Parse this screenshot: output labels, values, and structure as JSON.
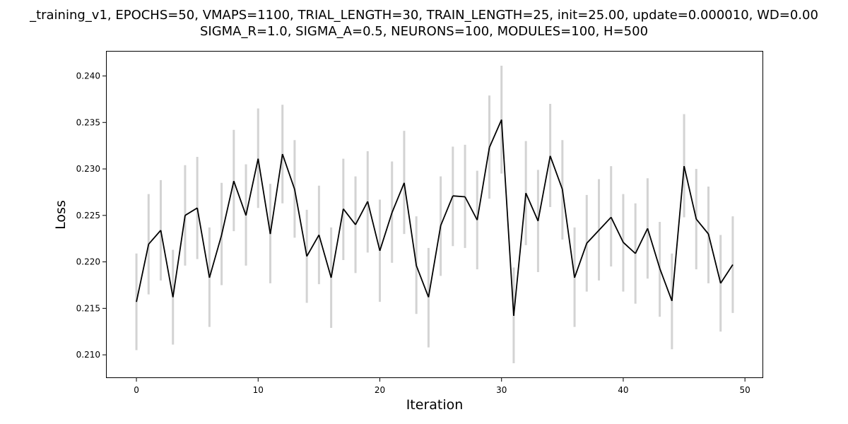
{
  "chart_data": {
    "type": "line",
    "title_line1": "_training_v1, EPOCHS=50, VMAPS=1100, TRIAL_LENGTH=30, TRAIN_LENGTH=25, init=25.00, update=0.000010, WD=0.00",
    "title_line2": "SIGMA_R=1.0, SIGMA_A=0.5, NEURONS=100, MODULES=100, H=500",
    "xlabel": "Iteration",
    "ylabel": "Loss",
    "xlim": [
      -2.5,
      51.5
    ],
    "ylim": [
      0.2075,
      0.2427
    ],
    "xticks": [
      0,
      10,
      20,
      30,
      40,
      50
    ],
    "yticks": [
      0.21,
      0.215,
      0.22,
      0.225,
      0.23,
      0.235,
      0.24
    ],
    "xtick_labels": [
      "0",
      "10",
      "20",
      "30",
      "40",
      "50"
    ],
    "ytick_labels": [
      "0.210",
      "0.215",
      "0.220",
      "0.225",
      "0.230",
      "0.235",
      "0.240"
    ],
    "line_color": "#000000",
    "errorbar_color": "#d3d3d3",
    "grid": false,
    "x": [
      0,
      1,
      2,
      3,
      4,
      5,
      6,
      7,
      8,
      9,
      10,
      11,
      12,
      13,
      14,
      15,
      16,
      17,
      18,
      19,
      20,
      21,
      22,
      23,
      24,
      25,
      26,
      27,
      28,
      29,
      30,
      31,
      32,
      33,
      34,
      35,
      36,
      37,
      38,
      39,
      40,
      41,
      42,
      43,
      44,
      45,
      46,
      47,
      48,
      49
    ],
    "y": [
      0.2157,
      0.2219,
      0.2234,
      0.2162,
      0.225,
      0.2258,
      0.2183,
      0.2229,
      0.2287,
      0.225,
      0.2311,
      0.223,
      0.2316,
      0.2278,
      0.2206,
      0.2229,
      0.2183,
      0.2257,
      0.224,
      0.2265,
      0.2212,
      0.2253,
      0.2285,
      0.2196,
      0.2162,
      0.2239,
      0.2271,
      0.227,
      0.2245,
      0.2323,
      0.2353,
      0.2142,
      0.2274,
      0.2244,
      0.2314,
      0.2278,
      0.2183,
      0.222,
      0.2234,
      0.2248,
      0.2221,
      0.2209,
      0.2236,
      0.2193,
      0.2158,
      0.2303,
      0.2246,
      0.223,
      0.2177,
      0.2197
    ],
    "y_lower": [
      0.2105,
      0.2165,
      0.218,
      0.2111,
      0.2196,
      0.2203,
      0.213,
      0.2175,
      0.2233,
      0.2196,
      0.2258,
      0.2177,
      0.2263,
      0.2226,
      0.2156,
      0.2176,
      0.2129,
      0.2202,
      0.2188,
      0.221,
      0.2157,
      0.2199,
      0.223,
      0.2144,
      0.2108,
      0.2185,
      0.2217,
      0.2215,
      0.2192,
      0.2268,
      0.2295,
      0.2091,
      0.2218,
      0.2189,
      0.2259,
      0.2224,
      0.213,
      0.2168,
      0.218,
      0.2195,
      0.2168,
      0.2155,
      0.2182,
      0.2141,
      0.2106,
      0.2248,
      0.2192,
      0.2177,
      0.2125,
      0.2145
    ],
    "y_upper": [
      0.2209,
      0.2273,
      0.2288,
      0.2213,
      0.2304,
      0.2313,
      0.2237,
      0.2285,
      0.2342,
      0.2305,
      0.2365,
      0.2284,
      0.2369,
      0.2331,
      0.2256,
      0.2282,
      0.2237,
      0.2311,
      0.2292,
      0.2319,
      0.2267,
      0.2308,
      0.2341,
      0.2249,
      0.2215,
      0.2292,
      0.2324,
      0.2326,
      0.2298,
      0.2379,
      0.2411,
      0.2194,
      0.233,
      0.2299,
      0.237,
      0.2331,
      0.2237,
      0.2272,
      0.2289,
      0.2303,
      0.2273,
      0.2263,
      0.229,
      0.2243,
      0.2209,
      0.2359,
      0.23,
      0.2281,
      0.2229,
      0.2249
    ]
  }
}
